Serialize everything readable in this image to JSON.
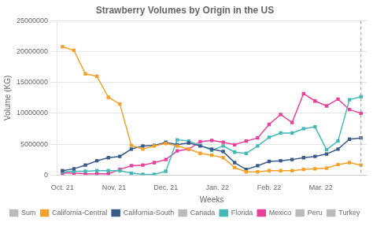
{
  "chart_data": {
    "type": "line",
    "title": "Strawberry Volumes by Origin in the US",
    "xlabel": "Weeks",
    "ylabel": "Volume (KG)",
    "x": [
      0,
      1,
      2,
      3,
      4,
      5,
      6,
      7,
      8,
      9,
      10,
      11,
      12,
      13,
      14,
      15,
      16,
      17,
      18,
      19,
      20,
      21,
      22,
      23,
      24,
      25,
      26
    ],
    "xlim": [
      -0.5,
      26.5
    ],
    "xticks": [
      {
        "value": 0,
        "label": "Oct. 21"
      },
      {
        "value": 4.5,
        "label": "Nov. 21"
      },
      {
        "value": 9,
        "label": "Dec. 21"
      },
      {
        "value": 13.5,
        "label": "Jan. 22"
      },
      {
        "value": 18,
        "label": "Feb. 22"
      },
      {
        "value": 22.5,
        "label": "Mar. 22"
      }
    ],
    "ylim": [
      0,
      25000000
    ],
    "yticks": [
      0,
      5000000,
      10000000,
      15000000,
      20000000,
      25000000
    ],
    "grid": "y",
    "legend": "bottom",
    "marker": "square",
    "vlines": [
      26
    ],
    "series": [
      {
        "name": "Sum",
        "color": "#bbbbbb",
        "values": [
          null,
          null,
          null,
          null,
          null,
          null,
          null,
          null,
          null,
          null,
          null,
          null,
          null,
          null,
          null,
          null,
          null,
          null,
          null,
          null,
          null,
          null,
          null,
          null,
          null,
          null,
          null
        ]
      },
      {
        "name": "California-Central",
        "color": "#f5a02a",
        "values": [
          20800000,
          20200000,
          16400000,
          16000000,
          12600000,
          11500000,
          4800000,
          4200000,
          4700000,
          5100000,
          4700000,
          4200000,
          3500000,
          3200000,
          2800000,
          1200000,
          500000,
          500000,
          700000,
          700000,
          700000,
          900000,
          1000000,
          1100000,
          1700000,
          2000000,
          1600000
        ]
      },
      {
        "name": "California-South",
        "color": "#3a5a8a",
        "values": [
          700000,
          1000000,
          1600000,
          2300000,
          2800000,
          3000000,
          4200000,
          4700000,
          4800000,
          5300000,
          4900000,
          5200000,
          4700000,
          4200000,
          3800000,
          2000000,
          900000,
          1500000,
          2200000,
          2300000,
          2500000,
          2800000,
          3000000,
          3400000,
          4200000,
          5800000,
          6000000
        ]
      },
      {
        "name": "Canada",
        "color": "#bbbbbb",
        "values": [
          null,
          null,
          null,
          null,
          null,
          null,
          null,
          null,
          null,
          null,
          null,
          null,
          null,
          null,
          null,
          null,
          null,
          null,
          null,
          null,
          null,
          null,
          null,
          null,
          null,
          null,
          null
        ]
      },
      {
        "name": "Florida",
        "color": "#45b8b8",
        "values": [
          500000,
          600000,
          600000,
          700000,
          700000,
          700000,
          300000,
          100000,
          100000,
          600000,
          5700000,
          5500000,
          4800000,
          4000000,
          4700000,
          3700000,
          3500000,
          4700000,
          6100000,
          6800000,
          6800000,
          7500000,
          7800000,
          4100000,
          5500000,
          12200000,
          12700000
        ]
      },
      {
        "name": "Mexico",
        "color": "#e8409a",
        "values": [
          300000,
          300000,
          200000,
          200000,
          200000,
          900000,
          1500000,
          1600000,
          2000000,
          2500000,
          3900000,
          4200000,
          5400000,
          5600000,
          5300000,
          4900000,
          5500000,
          6000000,
          8200000,
          9800000,
          8500000,
          13200000,
          12000000,
          11200000,
          12300000,
          10600000,
          10000000
        ]
      },
      {
        "name": "Peru",
        "color": "#bbbbbb",
        "values": [
          null,
          null,
          null,
          null,
          null,
          null,
          null,
          null,
          null,
          null,
          null,
          null,
          null,
          null,
          null,
          null,
          null,
          null,
          null,
          null,
          null,
          null,
          null,
          null,
          null,
          null,
          null
        ]
      },
      {
        "name": "Turkey",
        "color": "#bbbbbb",
        "values": [
          null,
          null,
          null,
          null,
          null,
          null,
          null,
          null,
          null,
          null,
          null,
          null,
          null,
          null,
          null,
          null,
          null,
          null,
          null,
          null,
          null,
          null,
          null,
          null,
          null,
          null,
          null
        ]
      }
    ]
  }
}
